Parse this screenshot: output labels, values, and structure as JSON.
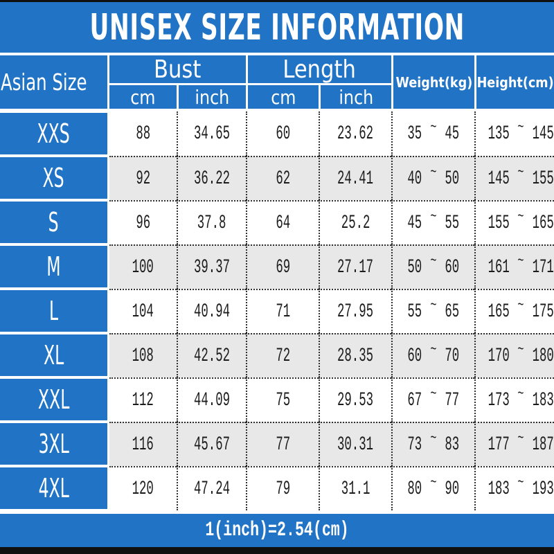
{
  "chart_data": {
    "type": "table",
    "title": "UNISEX SIZE INFORMATION",
    "header": {
      "size_column": "Asian Size",
      "groups": [
        {
          "label": "Bust",
          "sub": [
            "cm",
            "inch"
          ]
        },
        {
          "label": "Length",
          "sub": [
            "cm",
            "inch"
          ]
        }
      ],
      "weight_column": "Weight(kg)",
      "height_column": "Height(cm)",
      "range_tilde": "~"
    },
    "rows": [
      {
        "size": "XXS",
        "bust_cm": "88",
        "bust_inch": "34.65",
        "length_cm": "60",
        "length_inch": "23.62",
        "weight_min": "35",
        "weight_max": "45",
        "height_min": "135",
        "height_max": "145"
      },
      {
        "size": "XS",
        "bust_cm": "92",
        "bust_inch": "36.22",
        "length_cm": "62",
        "length_inch": "24.41",
        "weight_min": "40",
        "weight_max": "50",
        "height_min": "145",
        "height_max": "155"
      },
      {
        "size": "S",
        "bust_cm": "96",
        "bust_inch": "37.8",
        "length_cm": "64",
        "length_inch": "25.2",
        "weight_min": "45",
        "weight_max": "55",
        "height_min": "155",
        "height_max": "165"
      },
      {
        "size": "M",
        "bust_cm": "100",
        "bust_inch": "39.37",
        "length_cm": "69",
        "length_inch": "27.17",
        "weight_min": "50",
        "weight_max": "60",
        "height_min": "161",
        "height_max": "171"
      },
      {
        "size": "L",
        "bust_cm": "104",
        "bust_inch": "40.94",
        "length_cm": "71",
        "length_inch": "27.95",
        "weight_min": "55",
        "weight_max": "65",
        "height_min": "165",
        "height_max": "175"
      },
      {
        "size": "XL",
        "bust_cm": "108",
        "bust_inch": "42.52",
        "length_cm": "72",
        "length_inch": "28.35",
        "weight_min": "60",
        "weight_max": "70",
        "height_min": "170",
        "height_max": "180"
      },
      {
        "size": "XXL",
        "bust_cm": "112",
        "bust_inch": "44.09",
        "length_cm": "75",
        "length_inch": "29.53",
        "weight_min": "67",
        "weight_max": "77",
        "height_min": "173",
        "height_max": "183"
      },
      {
        "size": "3XL",
        "bust_cm": "116",
        "bust_inch": "45.67",
        "length_cm": "77",
        "length_inch": "30.31",
        "weight_min": "73",
        "weight_max": "83",
        "height_min": "177",
        "height_max": "187"
      },
      {
        "size": "4XL",
        "bust_cm": "120",
        "bust_inch": "47.24",
        "length_cm": "79",
        "length_inch": "31.1",
        "weight_min": "80",
        "weight_max": "90",
        "height_min": "183",
        "height_max": "193"
      }
    ]
  },
  "footer_note": "1(inch)=2.54(cm)",
  "colors": {
    "accent_blue": "#2173c5",
    "stripe_gray": "#e8e8e8",
    "frame_black": "#101010",
    "text_dark": "#1b1b1b"
  }
}
